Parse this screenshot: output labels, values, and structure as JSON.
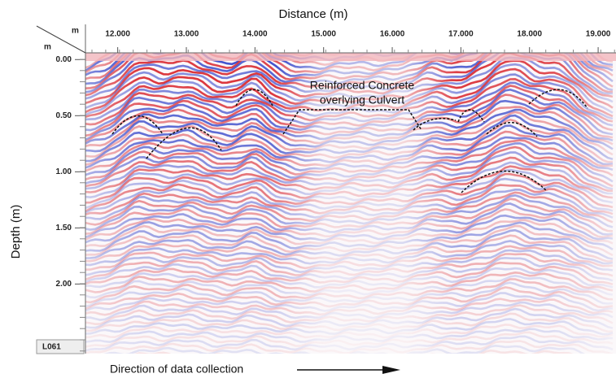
{
  "chart_data": {
    "type": "radargram",
    "title": "Distance (m)",
    "y_label": "Depth (m)",
    "x_unit": "m",
    "y_unit": "m",
    "line_id": "L061",
    "footer": "Direction of data collection",
    "annotation": [
      "Reinforced Concrete",
      "overlying Culvert"
    ],
    "xlim": [
      11.53,
      19.26
    ],
    "xticks": [
      {
        "value": 12,
        "label": "12.000"
      },
      {
        "value": 13,
        "label": "13.000"
      },
      {
        "value": 14,
        "label": "14.000"
      },
      {
        "value": 15,
        "label": "15.000"
      },
      {
        "value": 16,
        "label": "16.000"
      },
      {
        "value": 17,
        "label": "17.000"
      },
      {
        "value": 18,
        "label": "18.000"
      },
      {
        "value": 19,
        "label": "19.000"
      }
    ],
    "ylim": [
      -0.06,
      2.62
    ],
    "y_inverted": true,
    "yticks": [
      {
        "value": 0,
        "label": "0.00"
      },
      {
        "value": 0.5,
        "label": "0.50"
      },
      {
        "value": 1,
        "label": "1.00"
      },
      {
        "value": 1.5,
        "label": "1.50"
      },
      {
        "value": 2,
        "label": "2.00"
      }
    ]
  }
}
